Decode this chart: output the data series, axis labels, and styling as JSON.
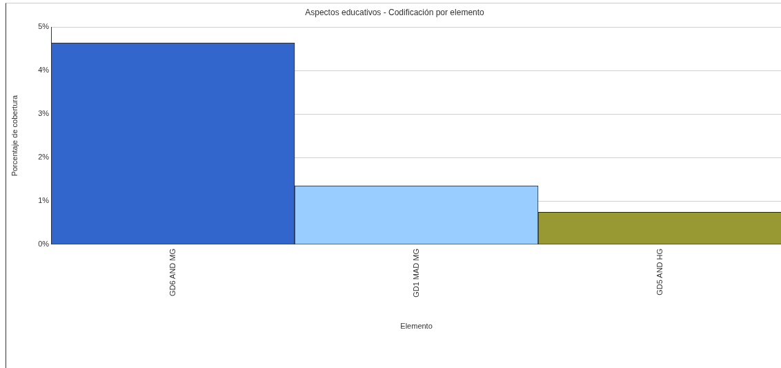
{
  "chart_data": {
    "type": "bar",
    "title": "Aspectos educativos - Codificación por elemento",
    "xlabel": "Elemento",
    "ylabel": "Porcentaje de cobertura",
    "categories": [
      "GD6 AND MG",
      "GD1 MAD MG",
      "GD5 AND HG"
    ],
    "values": [
      4.64,
      1.35,
      0.74
    ],
    "colors": [
      "#3366cc",
      "#99ccff",
      "#999933"
    ],
    "ylim": [
      0,
      5
    ],
    "yticks": [
      {
        "value": 0,
        "label": "0%"
      },
      {
        "value": 1,
        "label": "1%"
      },
      {
        "value": 2,
        "label": "2%"
      },
      {
        "value": 3,
        "label": "3%"
      },
      {
        "value": 4,
        "label": "4%"
      },
      {
        "value": 5,
        "label": "5%"
      }
    ],
    "grid": "y",
    "legend": false
  }
}
